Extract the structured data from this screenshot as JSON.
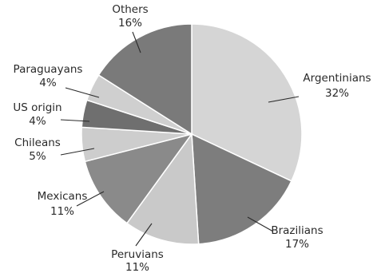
{
  "chart_data": {
    "type": "pie",
    "title": "",
    "slices": [
      {
        "label": "Argentinians",
        "value_label": "32%",
        "value": 32,
        "color": "#d5d5d5"
      },
      {
        "label": "Brazilians",
        "value_label": "17%",
        "value": 17,
        "color": "#7d7d7d"
      },
      {
        "label": "Peruvians",
        "value_label": "11%",
        "value": 11,
        "color": "#c9c9c9"
      },
      {
        "label": "Mexicans",
        "value_label": "11%",
        "value": 11,
        "color": "#8a8a8a"
      },
      {
        "label": "Chileans",
        "value_label": "5%",
        "value": 5,
        "color": "#cdcdcd"
      },
      {
        "label": "US origin",
        "value_label": "4%",
        "value": 4,
        "color": "#6f6f6f"
      },
      {
        "label": "Paraguayans",
        "value_label": "4%",
        "value": 4,
        "color": "#cfcfcf"
      },
      {
        "label": "Others",
        "value_label": "16%",
        "value": 16,
        "color": "#7a7a7a"
      }
    ],
    "start_angle_deg": 0,
    "direction": "clockwise"
  }
}
